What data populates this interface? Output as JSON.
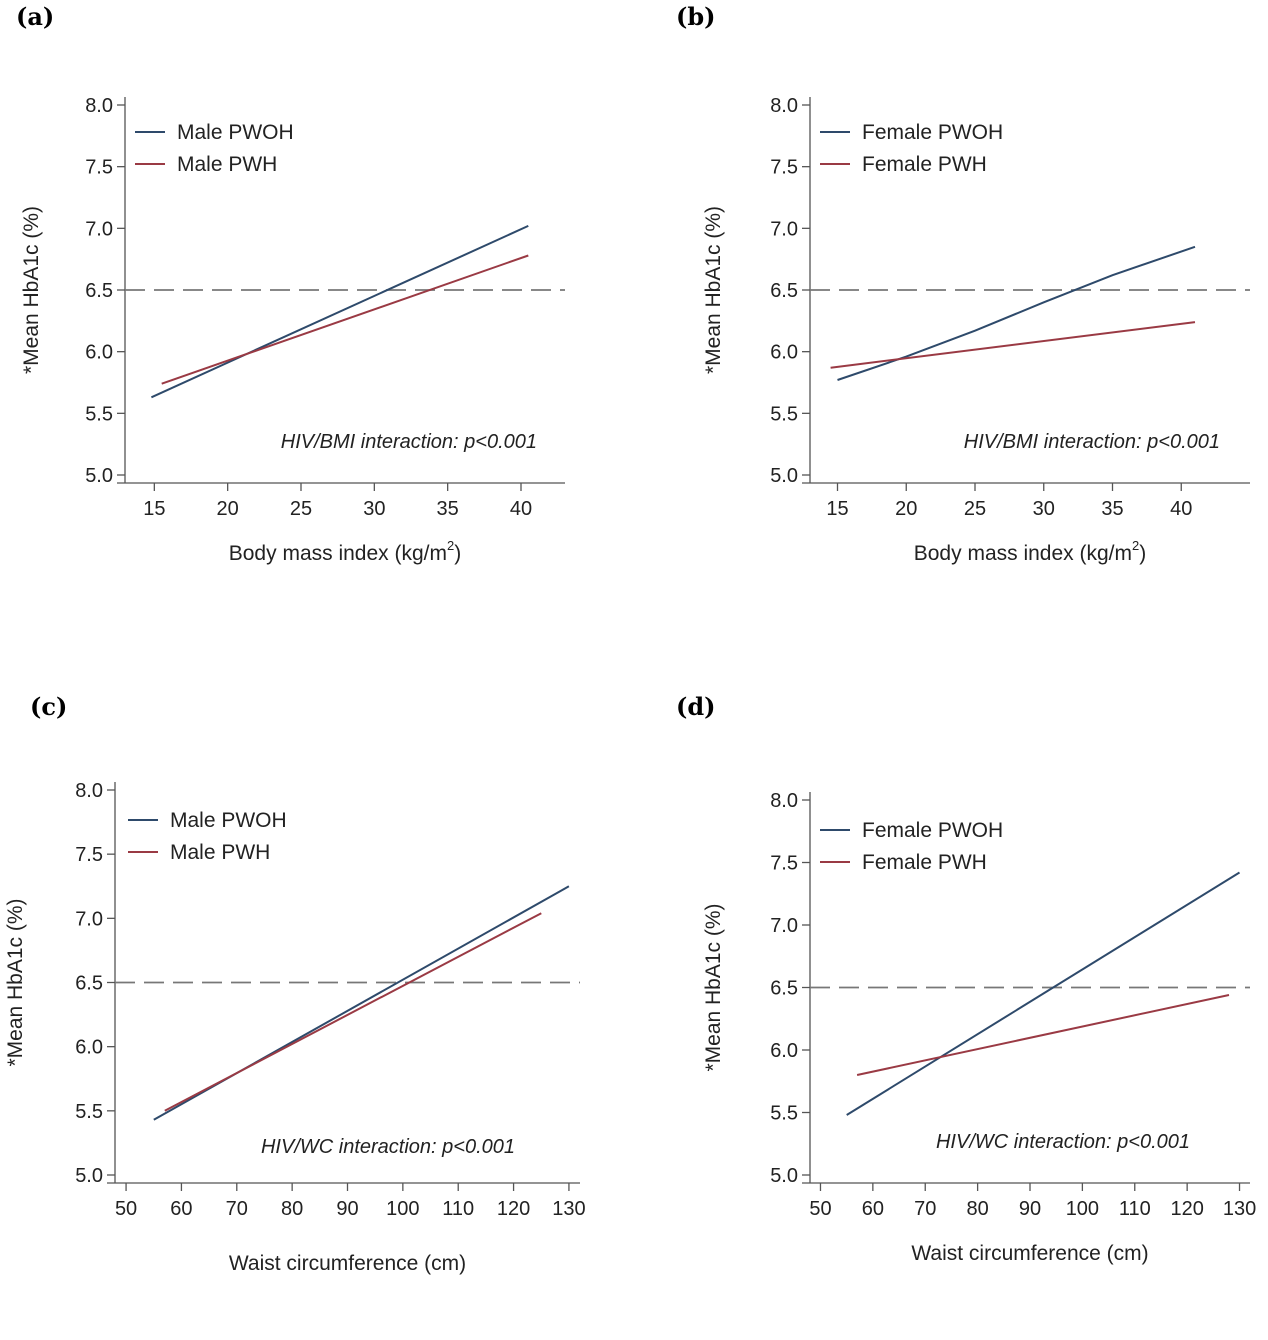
{
  "panels": [
    {
      "letter": "(a)"
    },
    {
      "letter": "(b)"
    },
    {
      "letter": "(c)"
    },
    {
      "letter": "(d)"
    }
  ],
  "chart_data": [
    {
      "type": "line",
      "xlabel": "Body mass index (kg/m",
      "xlabel_sup": "2",
      "xlabel_suffix": ")",
      "ylabel": "*Mean HbA1c (%)",
      "annotation": "HIV/BMI interaction: p<0.001",
      "xlim": [
        13,
        43
      ],
      "ylim": [
        5.0,
        8.0
      ],
      "xticks": [
        15,
        20,
        25,
        30,
        35,
        40
      ],
      "xtick_labels": [
        "15",
        "20",
        "25",
        "30",
        "35",
        "40"
      ],
      "yticks": [
        5.0,
        5.5,
        6.0,
        6.5,
        7.0,
        7.5,
        8.0
      ],
      "ytick_labels": [
        "5.0",
        "5.5",
        "6.0",
        "6.5",
        "7.0",
        "7.5",
        "8.0"
      ],
      "reference_line": {
        "y": 6.5,
        "style": "dashed"
      },
      "legend_position": "top-left",
      "grid": false,
      "series": [
        {
          "name": "Male PWOH",
          "color": "#2e4a6b",
          "x": [
            14.8,
            40.5
          ],
          "y": [
            5.63,
            7.02
          ]
        },
        {
          "name": "Male PWH",
          "color": "#9a3a44",
          "x": [
            15.5,
            40.5
          ],
          "y": [
            5.74,
            6.78
          ]
        }
      ]
    },
    {
      "type": "line",
      "xlabel": "Body mass index (kg/m",
      "xlabel_sup": "2",
      "xlabel_suffix": ")",
      "ylabel": "*Mean HbA1c (%)",
      "annotation": "HIV/BMI interaction: p<0.001",
      "xlim": [
        13,
        45
      ],
      "ylim": [
        5.0,
        8.0
      ],
      "xticks": [
        15,
        20,
        25,
        30,
        35,
        40
      ],
      "xtick_labels": [
        "15",
        "20",
        "25",
        "30",
        "35",
        "40"
      ],
      "yticks": [
        5.0,
        5.5,
        6.0,
        6.5,
        7.0,
        7.5,
        8.0
      ],
      "ytick_labels": [
        "5.0",
        "5.5",
        "6.0",
        "6.5",
        "7.0",
        "7.5",
        "8.0"
      ],
      "reference_line": {
        "y": 6.5,
        "style": "dashed"
      },
      "legend_position": "top-left",
      "grid": false,
      "series": [
        {
          "name": "Female PWOH",
          "color": "#2e4a6b",
          "x": [
            15,
            20,
            25,
            30,
            35,
            41
          ],
          "y": [
            5.77,
            5.96,
            6.17,
            6.4,
            6.62,
            6.85
          ]
        },
        {
          "name": "Female PWH",
          "color": "#9a3a44",
          "x": [
            14.5,
            41
          ],
          "y": [
            5.87,
            6.24
          ]
        }
      ]
    },
    {
      "type": "line",
      "xlabel": "Waist circumference (cm)",
      "ylabel": "*Mean HbA1c (%)",
      "annotation": "HIV/WC interaction: p<0.001",
      "xlim": [
        48,
        132
      ],
      "ylim": [
        5.0,
        8.0
      ],
      "xticks": [
        50,
        60,
        70,
        80,
        90,
        100,
        110,
        120,
        130
      ],
      "xtick_labels": [
        "50",
        "60",
        "70",
        "80",
        "90",
        "100",
        "110",
        "120",
        "130"
      ],
      "yticks": [
        5.0,
        5.5,
        6.0,
        6.5,
        7.0,
        7.5,
        8.0
      ],
      "ytick_labels": [
        "5.0",
        "5.5",
        "6.0",
        "6.5",
        "7.0",
        "7.5",
        "8.0"
      ],
      "reference_line": {
        "y": 6.5,
        "style": "dashed"
      },
      "legend_position": "top-left",
      "grid": false,
      "series": [
        {
          "name": "Male PWOH",
          "color": "#2e4a6b",
          "x": [
            55,
            130
          ],
          "y": [
            5.43,
            7.25
          ]
        },
        {
          "name": "Male PWH",
          "color": "#9a3a44",
          "x": [
            57,
            125
          ],
          "y": [
            5.5,
            7.04
          ]
        }
      ]
    },
    {
      "type": "line",
      "xlabel": "Waist circumference (cm)",
      "ylabel": "*Mean HbA1c (%)",
      "annotation": "HIV/WC interaction: p<0.001",
      "xlim": [
        48,
        132
      ],
      "ylim": [
        5.0,
        8.0
      ],
      "xticks": [
        50,
        60,
        70,
        80,
        90,
        100,
        110,
        120,
        130
      ],
      "xtick_labels": [
        "50",
        "60",
        "70",
        "80",
        "90",
        "100",
        "110",
        "120",
        "130"
      ],
      "yticks": [
        5.0,
        5.5,
        6.0,
        6.5,
        7.0,
        7.5,
        8.0
      ],
      "ytick_labels": [
        "5.0",
        "5.5",
        "6.0",
        "6.5",
        "7.0",
        "7.5",
        "8.0"
      ],
      "reference_line": {
        "y": 6.5,
        "style": "dashed"
      },
      "legend_position": "top-left",
      "grid": false,
      "series": [
        {
          "name": "Female PWOH",
          "color": "#2e4a6b",
          "x": [
            55,
            130
          ],
          "y": [
            5.48,
            7.42
          ]
        },
        {
          "name": "Female PWH",
          "color": "#9a3a44",
          "x": [
            57,
            128
          ],
          "y": [
            5.8,
            6.44
          ]
        }
      ]
    }
  ]
}
